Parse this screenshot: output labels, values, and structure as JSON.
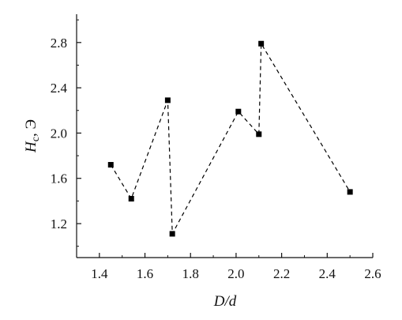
{
  "chart_data": {
    "type": "scatter",
    "title": "",
    "xlabel": "D/d",
    "ylabel": "Hc, Э",
    "ylabel_parts": {
      "symbol": "H",
      "subscript": "c",
      "unit": ", Э"
    },
    "xlim": [
      1.3,
      2.6
    ],
    "ylim": [
      0.9,
      3.05
    ],
    "xticks": [
      1.4,
      1.6,
      1.8,
      2.0,
      2.2,
      2.4,
      2.6
    ],
    "xtick_labels": [
      "1.4",
      "1.6",
      "1.8",
      "2.0",
      "2.2",
      "2.4",
      "2.6"
    ],
    "yticks": [
      1.2,
      1.6,
      2.0,
      2.4,
      2.8
    ],
    "ytick_labels": [
      "1.2",
      "1.6",
      "2.0",
      "2.4",
      "2.8"
    ],
    "grid": false,
    "series": [
      {
        "marker": "square",
        "line_style": "dashed",
        "color": "#000000",
        "points": [
          {
            "x": 1.45,
            "y": 1.72
          },
          {
            "x": 1.54,
            "y": 1.42
          },
          {
            "x": 1.7,
            "y": 2.29
          },
          {
            "x": 1.72,
            "y": 1.11
          },
          {
            "x": 2.01,
            "y": 2.19
          },
          {
            "x": 2.1,
            "y": 1.99
          },
          {
            "x": 2.11,
            "y": 2.79
          },
          {
            "x": 2.5,
            "y": 1.48
          }
        ]
      }
    ]
  }
}
